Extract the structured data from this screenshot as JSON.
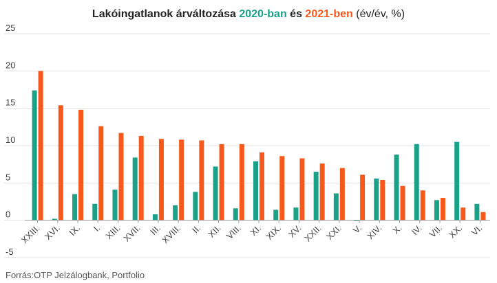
{
  "title": {
    "part1": "Lakóingatlanok árváltozása",
    "year1": "2020-ban",
    "part2": "és",
    "year2": "2021-ben",
    "part3": "(év/év, %)"
  },
  "source": "Forrás:OTP Jelzálogbank, Portfolio",
  "colors": {
    "s2020": "#1aa187",
    "s2021": "#f6591b",
    "grid": "#e3e3e3",
    "axis": "#999999"
  },
  "chart_data": {
    "type": "bar",
    "categories": [
      "XXIII.",
      "XVI.",
      "IX.",
      "I.",
      "XIII.",
      "XVII.",
      "III.",
      "XVIII.",
      "II.",
      "XII.",
      "VIII.",
      "XI.",
      "XIX.",
      "XV.",
      "XXII.",
      "XXI.",
      "V.",
      "XIV.",
      "X.",
      "IV.",
      "VII.",
      "XX.",
      "VI."
    ],
    "series": [
      {
        "name": "2020-ban",
        "values": [
          17.4,
          0.2,
          3.5,
          2.2,
          4.1,
          8.4,
          0.8,
          2.0,
          3.8,
          7.2,
          1.6,
          7.9,
          1.4,
          1.7,
          6.5,
          3.6,
          -0.1,
          5.6,
          8.8,
          10.2,
          2.7,
          10.5,
          2.2
        ]
      },
      {
        "name": "2021-ben",
        "values": [
          20.0,
          15.4,
          14.8,
          12.6,
          11.7,
          11.3,
          10.9,
          10.8,
          10.7,
          10.2,
          10.2,
          9.1,
          8.6,
          8.3,
          7.6,
          7.0,
          6.1,
          5.4,
          4.6,
          4.0,
          3.0,
          1.7,
          1.1
        ]
      }
    ],
    "ylim": [
      -5,
      25
    ],
    "yticks": [
      -5,
      0,
      5,
      10,
      15,
      20,
      25
    ],
    "grid": true,
    "legend": "in title"
  }
}
